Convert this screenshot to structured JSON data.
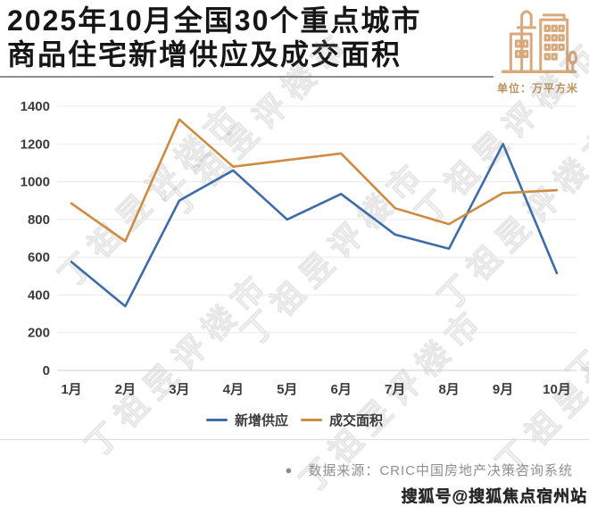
{
  "header": {
    "title_lines": [
      "2025年10月全国30个重点城市",
      "商品住宅新增供应及成交面积"
    ],
    "unit_label": "单位：万平方米",
    "icon": "city-buildings-icon",
    "icon_color": "#d8a97c",
    "title_color": "#161616"
  },
  "chart_data": {
    "type": "line",
    "title": "2025年10月全国30个重点城市商品住宅新增供应及成交面积",
    "unit": "万平方米",
    "categories": [
      "1月",
      "2月",
      "3月",
      "4月",
      "5月",
      "6月",
      "7月",
      "8月",
      "9月",
      "10月"
    ],
    "series": [
      {
        "name": "新增供应",
        "color": "#3e6ca8",
        "values": [
          575,
          340,
          900,
          1060,
          800,
          935,
          720,
          645,
          1200,
          515
        ]
      },
      {
        "name": "成交面积",
        "color": "#cd8c42",
        "values": [
          885,
          685,
          1330,
          1080,
          1115,
          1150,
          860,
          775,
          940,
          955
        ]
      }
    ],
    "xlabel": "",
    "ylabel": "",
    "ylim": [
      0,
      1400
    ],
    "yticks": [
      0,
      200,
      400,
      600,
      800,
      1000,
      1200,
      1400
    ],
    "grid": true,
    "legend_position": "bottom"
  },
  "watermark": {
    "text": "丁祖昱评楼市"
  },
  "footer": {
    "source_bullet": "●",
    "source_text": "数据来源：CRIC中国房地产决策咨询系统",
    "sohu_tag": "搜狐号@搜狐焦点宿州站"
  }
}
